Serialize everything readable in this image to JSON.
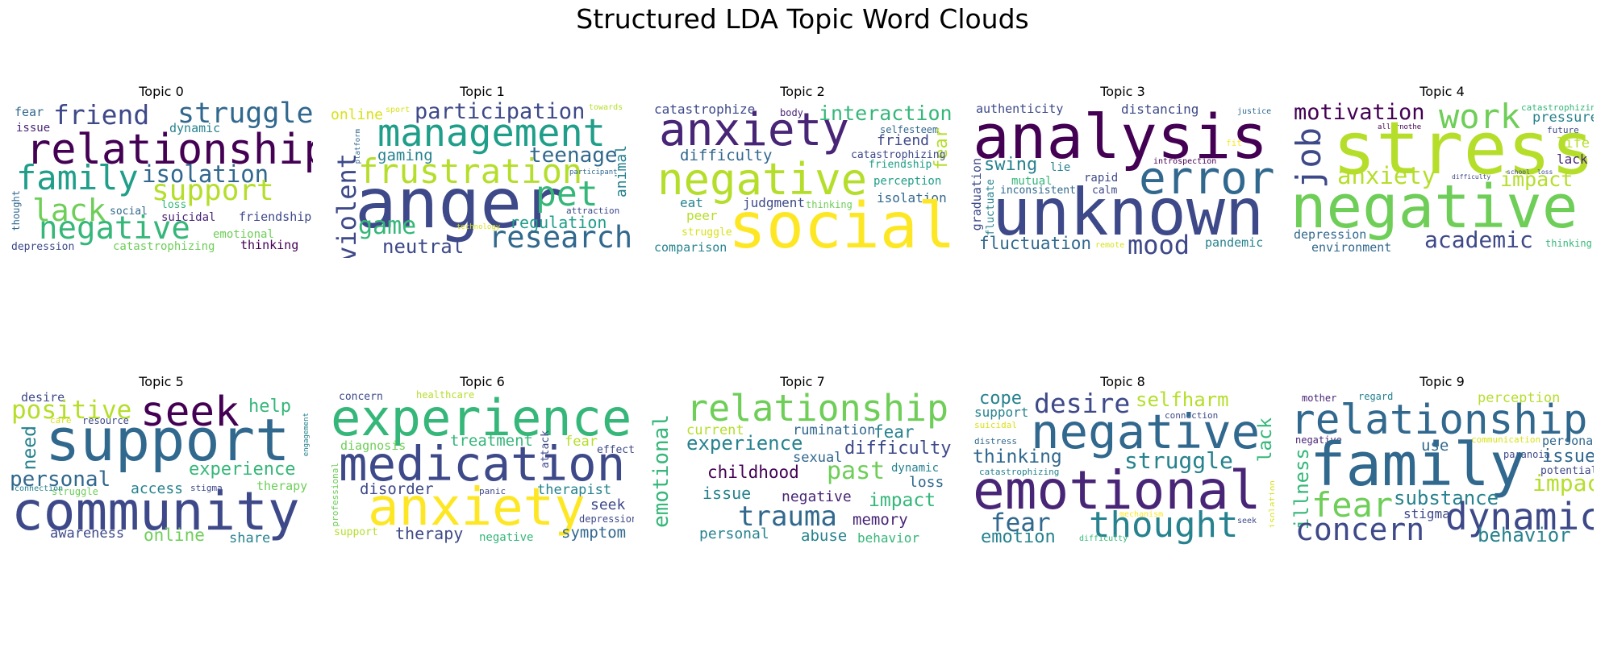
{
  "title": "Structured LDA Topic Word Clouds",
  "topics": [
    {
      "title": "Topic 0",
      "words": {
        "relationship": "relationship",
        "friend": "friend",
        "struggle": "struggle",
        "family": "family",
        "isolation": "isolation",
        "support": "support",
        "lack": "lack",
        "negative": "negative",
        "fear": "fear",
        "issue": "issue",
        "dynamic": "dynamic",
        "loss": "loss",
        "social": "social",
        "suicidal": "suicidal",
        "friendship": "friendship",
        "emotional": "emotional",
        "thought": "thought",
        "depression": "depression",
        "catastrophizing": "catastrophizing",
        "thinking": "thinking"
      }
    },
    {
      "title": "Topic 1",
      "words": {
        "online": "online",
        "sport": "sport",
        "participation": "participation",
        "towards": "towards",
        "management": "management",
        "platform": "platform",
        "violent": "violent",
        "gaming": "gaming",
        "frustration": "frustration",
        "teenage": "teenage",
        "participant": "participant",
        "animal": "animal",
        "anger": "anger",
        "pet": "pet",
        "attraction": "attraction",
        "game": "game",
        "regulation": "regulation",
        "technology": "technology",
        "research": "research",
        "neutral": "neutral"
      }
    },
    {
      "title": "Topic 2",
      "words": {
        "catastrophize": "catastrophize",
        "body": "body",
        "interaction": "interaction",
        "anxiety": "anxiety",
        "selfesteem": "selfesteem",
        "friend": "friend",
        "fear": "fear",
        "difficulty": "difficulty",
        "catastrophizing": "catastrophizing",
        "friendship": "friendship",
        "negative": "negative",
        "perception": "perception",
        "eat": "eat",
        "judgment": "judgment",
        "thinking": "thinking",
        "isolation": "isolation",
        "peer": "peer",
        "social": "social",
        "struggle": "struggle",
        "comparison": "comparison"
      }
    },
    {
      "title": "Topic 3",
      "words": {
        "authenticity": "authenticity",
        "distancing": "distancing",
        "justice": "justice",
        "analysis": "analysis",
        "fit": "fit",
        "error": "error",
        "swing": "swing",
        "lie": "lie",
        "graduation": "graduation",
        "fluctuate": "fluctuate",
        "introspection": "introspection",
        "mutual": "mutual",
        "rapid": "rapid",
        "inconsistent": "inconsistent",
        "calm": "calm",
        "unknown": "unknown",
        "fluctuation": "fluctuation",
        "remote": "remote",
        "mood": "mood",
        "pandemic": "pandemic"
      }
    },
    {
      "title": "Topic 4",
      "words": {
        "motivation": "motivation",
        "work": "work",
        "catastrophizing": "catastrophizing",
        "pressure": "pressure",
        "allornothe": "allornothe",
        "future": "future",
        "job": "job",
        "stress": "stress",
        "life": "life",
        "lack": "lack",
        "anxiety": "anxiety",
        "school": "school",
        "loss": "loss",
        "difficulty": "difficulty",
        "impact": "impact",
        "negative": "negative",
        "depression": "depression",
        "academic": "academic",
        "environment": "environment",
        "thinking": "thinking"
      }
    },
    {
      "title": "Topic 5",
      "words": {
        "desire": "desire",
        "positive": "positive",
        "seek": "seek",
        "help": "help",
        "care": "care",
        "resource": "resource",
        "need": "need",
        "support": "support",
        "engagement": "engagement",
        "personal": "personal",
        "experience": "experience",
        "access": "access",
        "struggle": "struggle",
        "stigma": "stigma",
        "therapy": "therapy",
        "connection": "connection",
        "community": "community",
        "awareness": "awareness",
        "online": "online",
        "share": "share"
      }
    },
    {
      "title": "Topic 6",
      "words": {
        "concern": "concern",
        "healthcare": "healthcare",
        "experience": "experience",
        "diagnosis": "diagnosis",
        "treatment": "treatment",
        "attack": "attack",
        "fear": "fear",
        "effect": "effect",
        "professional": "professional",
        "medication": "medication",
        "disorder": "disorder",
        "panic": "panic",
        "therapist": "therapist",
        "anxiety": "anxiety",
        "seek": "seek",
        "depression": "depression",
        "support": "support",
        "therapy": "therapy",
        "negative": "negative",
        "symptom": "symptom"
      }
    },
    {
      "title": "Topic 7",
      "words": {
        "relationship": "relationship",
        "current": "current",
        "rumination": "rumination",
        "fear": "fear",
        "experience": "experience",
        "difficulty": "difficulty",
        "emotional": "emotional",
        "sexual": "sexual",
        "dynamic": "dynamic",
        "childhood": "childhood",
        "past": "past",
        "loss": "loss",
        "issue": "issue",
        "negative": "negative",
        "impact": "impact",
        "trauma": "trauma",
        "memory": "memory",
        "personal": "personal",
        "abuse": "abuse",
        "behavior": "behavior"
      }
    },
    {
      "title": "Topic 8",
      "words": {
        "cope": "cope",
        "desire": "desire",
        "selfharm": "selfharm",
        "support": "support",
        "connection": "connection",
        "suicidal": "suicidal",
        "negative": "negative",
        "lack": "lack",
        "distress": "distress",
        "thinking": "thinking",
        "struggle": "struggle",
        "catastrophizing": "catastrophizing",
        "emotional": "emotional",
        "isolation": "isolation",
        "mechanism": "mechanism",
        "fear": "fear",
        "thought": "thought",
        "seek": "seek",
        "emotion": "emotion",
        "difficulty": "difficulty"
      }
    },
    {
      "title": "Topic 9",
      "words": {
        "mother": "mother",
        "regard": "regard",
        "perception": "perception",
        "relationship": "relationship",
        "negative": "negative",
        "communication": "communication",
        "use": "use",
        "personal": "personal",
        "paranoia": "paranoia",
        "family": "family",
        "illness": "illness",
        "issue": "issue",
        "potential": "potential",
        "impact": "impact",
        "fear": "fear",
        "substance": "substance",
        "stigma": "stigma",
        "concern": "concern",
        "dynamic": "dynamic",
        "behavior": "behavior"
      }
    }
  ],
  "colors": {
    "c0": "#440154",
    "c1": "#482576",
    "c2": "#3e4989",
    "c3": "#31688e",
    "c4": "#26828e",
    "c5": "#1f9e89",
    "c6": "#35b779",
    "c7": "#6ece58",
    "c8": "#b5de2b",
    "c9": "#d8e219",
    "c10": "#fde725"
  }
}
